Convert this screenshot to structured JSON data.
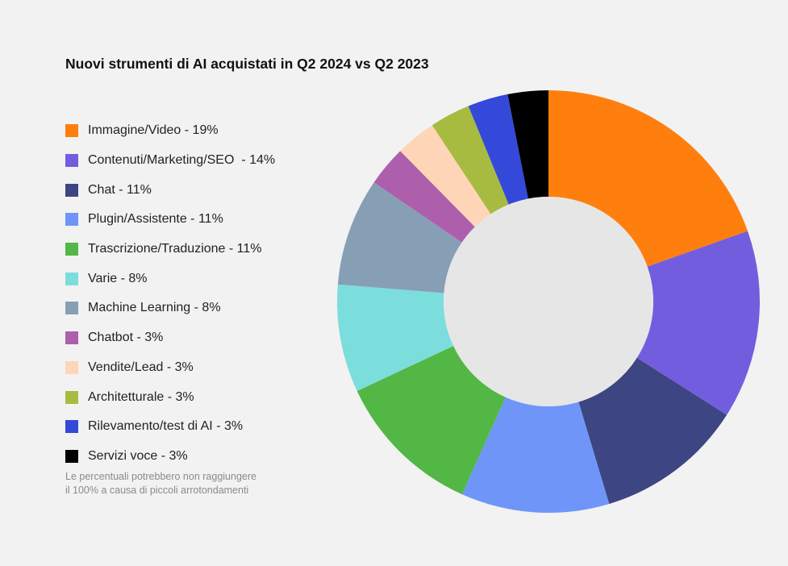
{
  "chart_data": {
    "type": "pie",
    "title": "Nuovi strumenti di AI acquistati in Q2 2024 vs Q2 2023",
    "donut": true,
    "legend_position": "left",
    "slices": [
      {
        "label": "Immagine/Video - 19%",
        "value": 19,
        "color": "#ff7f0e"
      },
      {
        "label": "Contenuti/Marketing/SEO  - 14%",
        "value": 14,
        "color": "#725ddf"
      },
      {
        "label": "Chat - 11%",
        "value": 11,
        "color": "#3d4583"
      },
      {
        "label": "Plugin/Assistente - 11%",
        "value": 11,
        "color": "#6f95f8"
      },
      {
        "label": "Trascrizione/Traduzione - 11%",
        "value": 11,
        "color": "#53b746"
      },
      {
        "label": "Varie - 8%",
        "value": 8,
        "color": "#7bdedc"
      },
      {
        "label": "Machine Learning - 8%",
        "value": 8,
        "color": "#879fb5"
      },
      {
        "label": "Chatbot - 3%",
        "value": 3,
        "color": "#ad5fac"
      },
      {
        "label": "Vendite/Lead - 3%",
        "value": 3,
        "color": "#ffd5b8"
      },
      {
        "label": "Architetturale - 3%",
        "value": 3,
        "color": "#a8bb41"
      },
      {
        "label": "Rilevamento/test di AI - 3%",
        "value": 3,
        "color": "#3449d9"
      },
      {
        "label": "Servizi voce - 3%",
        "value": 3,
        "color": "#000000"
      }
    ],
    "footnote": "Le percentuali potrebbero non raggiungere il 100% a causa di piccoli arrotondamenti"
  }
}
